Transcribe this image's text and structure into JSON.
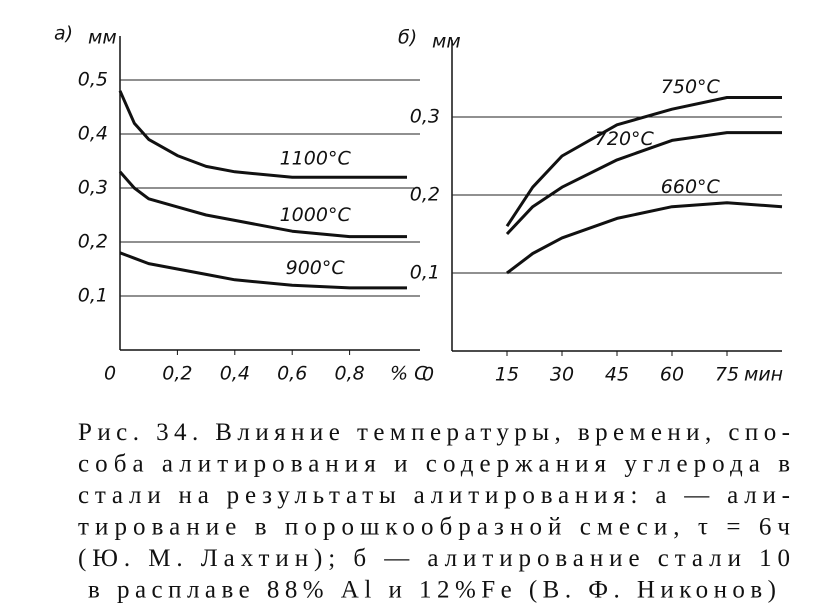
{
  "chart_data": [
    {
      "type": "line",
      "panel_label": "а)",
      "y_label": "мм",
      "x_label": "% С",
      "xlim": [
        0,
        1.0
      ],
      "ylim": [
        0,
        0.6
      ],
      "xticks": [
        0,
        {
          "value": 0.2,
          "label": "0,2"
        },
        {
          "value": 0.4,
          "label": "0,4"
        },
        {
          "value": 0.6,
          "label": "0,6"
        },
        {
          "value": 0.8,
          "label": "0,8"
        }
      ],
      "yticks": [
        {
          "value": 0.1,
          "label": "0,1"
        },
        {
          "value": 0.2,
          "label": "0,2"
        },
        {
          "value": 0.3,
          "label": "0,3"
        },
        {
          "value": 0.4,
          "label": "0,4"
        },
        {
          "value": 0.5,
          "label": "0,5"
        }
      ],
      "grid": true,
      "x": [
        0,
        0.05,
        0.1,
        0.2,
        0.3,
        0.4,
        0.6,
        0.8,
        1.0
      ],
      "series": [
        {
          "name": "1100°С",
          "color": "#111111",
          "values": [
            0.48,
            0.42,
            0.39,
            0.36,
            0.34,
            0.33,
            0.32,
            0.32,
            0.32
          ]
        },
        {
          "name": "1000°С",
          "color": "#111111",
          "values": [
            0.33,
            0.3,
            0.28,
            0.265,
            0.25,
            0.24,
            0.22,
            0.21,
            0.21
          ]
        },
        {
          "name": "900°С",
          "color": "#111111",
          "values": [
            0.18,
            0.17,
            0.16,
            0.15,
            0.14,
            0.13,
            0.12,
            0.115,
            0.115
          ]
        }
      ]
    },
    {
      "type": "line",
      "panel_label": "б)",
      "y_label": "мм",
      "x_label": "мин",
      "xlim": [
        0,
        90
      ],
      "ylim": [
        0,
        0.4
      ],
      "xticks": [
        0,
        15,
        30,
        45,
        60,
        75
      ],
      "yticks": [
        {
          "value": 0.1,
          "label": "0,1"
        },
        {
          "value": 0.2,
          "label": "0,2"
        },
        {
          "value": 0.3,
          "label": "0,3"
        }
      ],
      "grid": true,
      "x": [
        15,
        22,
        30,
        45,
        60,
        75,
        90
      ],
      "series": [
        {
          "name": "750°С",
          "color": "#111111",
          "values": [
            0.16,
            0.21,
            0.25,
            0.29,
            0.31,
            0.325,
            0.325
          ]
        },
        {
          "name": "720°С",
          "color": "#111111",
          "values": [
            0.15,
            0.185,
            0.21,
            0.245,
            0.27,
            0.28,
            0.28
          ]
        },
        {
          "name": "660°С",
          "color": "#111111",
          "values": [
            0.1,
            0.125,
            0.145,
            0.17,
            0.185,
            0.19,
            0.185
          ]
        }
      ]
    }
  ],
  "caption": [
    "Рис. 34. Влияние температуры, времени, спо-",
    "соба алитирования и содержания углерода в",
    "стали на результаты алитирования: а — али-",
    "тирование в порошкообразной смеси, τ = 6ч",
    "(Ю. М. Лахтин); б — алитирование стали 10",
    "в расплаве 88% Al и 12%Fe (В. Ф. Никонов)"
  ]
}
